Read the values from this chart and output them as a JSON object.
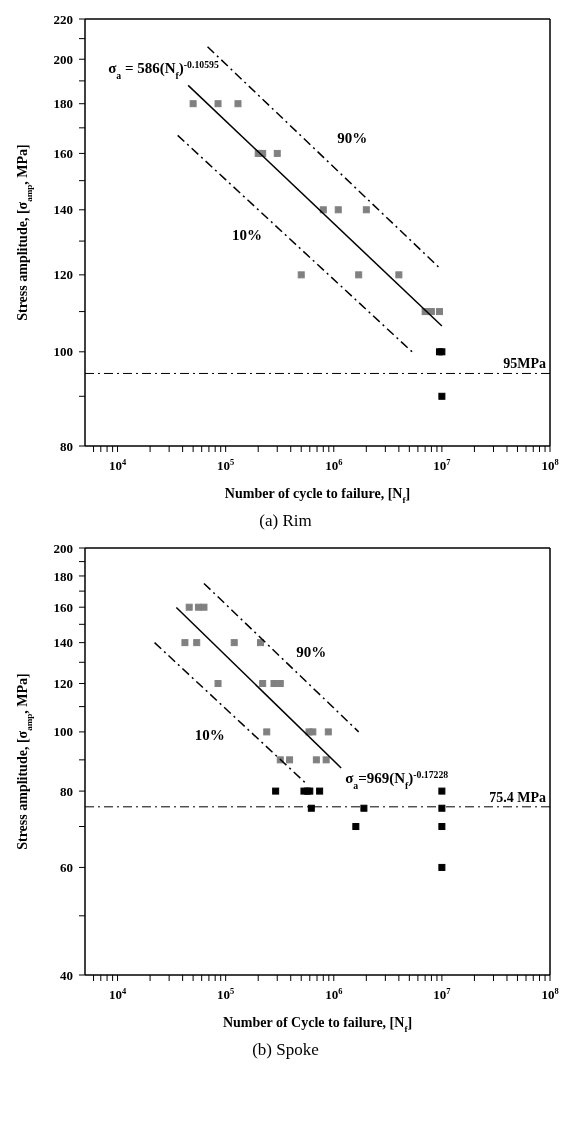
{
  "chart_data": [
    {
      "type": "scatter",
      "title": "(a) Rim",
      "xlabel": "Number of cycle to failure, [N$_{f}$]",
      "ylabel": "Stress amplitude, [σ$_{amp}$, MPa]",
      "log": "xy",
      "marker": "square",
      "xlim": [
        5000,
        100000000
      ],
      "xticks": [
        {
          "value": 10000,
          "label": "10$^{4}$"
        },
        {
          "value": 100000,
          "label": "10$^{5}$"
        },
        {
          "value": 1000000,
          "label": "10$^{6}$"
        },
        {
          "value": 10000000,
          "label": "10$^{7}$"
        },
        {
          "value": 100000000,
          "label": "10$^{8}$"
        },
        {
          "value": 6000,
          "label": null
        },
        {
          "value": 7000,
          "label": null
        },
        {
          "value": 8000,
          "label": null
        },
        {
          "value": 9000,
          "label": null
        },
        {
          "value": 20000,
          "label": null
        },
        {
          "value": 30000,
          "label": null
        },
        {
          "value": 40000,
          "label": null
        },
        {
          "value": 50000,
          "label": null
        },
        {
          "value": 60000,
          "label": null
        },
        {
          "value": 70000,
          "label": null
        },
        {
          "value": 80000,
          "label": null
        },
        {
          "value": 90000,
          "label": null
        },
        {
          "value": 200000,
          "label": null
        },
        {
          "value": 300000,
          "label": null
        },
        {
          "value": 400000,
          "label": null
        },
        {
          "value": 500000,
          "label": null
        },
        {
          "value": 600000,
          "label": null
        },
        {
          "value": 700000,
          "label": null
        },
        {
          "value": 800000,
          "label": null
        },
        {
          "value": 900000,
          "label": null
        },
        {
          "value": 2000000,
          "label": null
        },
        {
          "value": 3000000,
          "label": null
        },
        {
          "value": 4000000,
          "label": null
        },
        {
          "value": 5000000,
          "label": null
        },
        {
          "value": 6000000,
          "label": null
        },
        {
          "value": 7000000,
          "label": null
        },
        {
          "value": 8000000,
          "label": null
        },
        {
          "value": 9000000,
          "label": null
        },
        {
          "value": 20000000,
          "label": null
        },
        {
          "value": 30000000,
          "label": null
        },
        {
          "value": 40000000,
          "label": null
        },
        {
          "value": 50000000,
          "label": null
        },
        {
          "value": 60000000,
          "label": null
        },
        {
          "value": 70000000,
          "label": null
        },
        {
          "value": 80000000,
          "label": null
        },
        {
          "value": 90000000,
          "label": null
        }
      ],
      "ylim": [
        80,
        220
      ],
      "yticks": [
        80,
        100,
        120,
        140,
        160,
        180,
        200,
        220,
        {
          "value": 90,
          "label": null
        },
        {
          "value": 110,
          "label": null
        },
        {
          "value": 130,
          "label": null
        },
        {
          "value": 150,
          "label": null
        },
        {
          "value": 170,
          "label": null
        },
        {
          "value": 190,
          "label": null
        },
        {
          "value": 210,
          "label": null
        }
      ],
      "series": [
        {
          "color": "#808080",
          "x": [
            50000,
            85000,
            130000,
            200000,
            220000,
            300000,
            500000,
            800000,
            1100000,
            1700000,
            2000000,
            4000000,
            7000000,
            8000000,
            9500000
          ],
          "values": [
            180,
            180,
            180,
            160,
            160,
            160,
            120,
            140,
            140,
            120,
            140,
            120,
            110,
            110,
            110
          ]
        },
        {
          "color": "#000000",
          "x": [
            9500000,
            10000000,
            10000000
          ],
          "values": [
            100,
            100,
            90
          ]
        },
        {
          "type": "line",
          "name": "σ$_{a}$ = 586(N$_{f}$)$^{-0.10595}$",
          "color": "#000000",
          "line_style": "solid",
          "marker": "none",
          "x": [
            45000,
            10000000
          ],
          "values": [
            188,
            106.3
          ]
        },
        {
          "type": "line",
          "name": "90%",
          "color": "#000000",
          "line_style": "dashed",
          "marker": "none",
          "x": [
            68000,
            9500000
          ],
          "values": [
            206,
            122
          ]
        },
        {
          "type": "line",
          "name": "10%",
          "color": "#000000",
          "line_style": "dashed",
          "marker": "none",
          "x": [
            36000,
            5300000
          ],
          "values": [
            167,
            100
          ]
        }
      ],
      "ref_lines": [
        {
          "axis": "y",
          "value": 95,
          "label": "95MPa",
          "line_style": "dashed",
          "color": "#000000"
        }
      ]
    },
    {
      "type": "scatter",
      "title": "(b) Spoke",
      "xlabel": "Number of Cycle to failure, [N$_{f}$]",
      "ylabel": "Stress amplitude, [σ$_{amp}$, MPa]",
      "log": "xy",
      "marker": "square",
      "xlim": [
        5000,
        100000000
      ],
      "xticks": [
        {
          "value": 10000,
          "label": "10$^{4}$"
        },
        {
          "value": 100000,
          "label": "10$^{5}$"
        },
        {
          "value": 1000000,
          "label": "10$^{6}$"
        },
        {
          "value": 10000000,
          "label": "10$^{7}$"
        },
        {
          "value": 100000000,
          "label": "10$^{8}$"
        },
        {
          "value": 6000,
          "label": null
        },
        {
          "value": 7000,
          "label": null
        },
        {
          "value": 8000,
          "label": null
        },
        {
          "value": 9000,
          "label": null
        },
        {
          "value": 20000,
          "label": null
        },
        {
          "value": 30000,
          "label": null
        },
        {
          "value": 40000,
          "label": null
        },
        {
          "value": 50000,
          "label": null
        },
        {
          "value": 60000,
          "label": null
        },
        {
          "value": 70000,
          "label": null
        },
        {
          "value": 80000,
          "label": null
        },
        {
          "value": 90000,
          "label": null
        },
        {
          "value": 200000,
          "label": null
        },
        {
          "value": 300000,
          "label": null
        },
        {
          "value": 400000,
          "label": null
        },
        {
          "value": 500000,
          "label": null
        },
        {
          "value": 600000,
          "label": null
        },
        {
          "value": 700000,
          "label": null
        },
        {
          "value": 800000,
          "label": null
        },
        {
          "value": 900000,
          "label": null
        },
        {
          "value": 2000000,
          "label": null
        },
        {
          "value": 3000000,
          "label": null
        },
        {
          "value": 4000000,
          "label": null
        },
        {
          "value": 5000000,
          "label": null
        },
        {
          "value": 6000000,
          "label": null
        },
        {
          "value": 7000000,
          "label": null
        },
        {
          "value": 8000000,
          "label": null
        },
        {
          "value": 9000000,
          "label": null
        },
        {
          "value": 20000000,
          "label": null
        },
        {
          "value": 30000000,
          "label": null
        },
        {
          "value": 40000000,
          "label": null
        },
        {
          "value": 50000000,
          "label": null
        },
        {
          "value": 60000000,
          "label": null
        },
        {
          "value": 70000000,
          "label": null
        },
        {
          "value": 80000000,
          "label": null
        },
        {
          "value": 90000000,
          "label": null
        }
      ],
      "ylim": [
        40,
        200
      ],
      "yticks": [
        40,
        60,
        80,
        100,
        120,
        140,
        160,
        180,
        200,
        {
          "value": 50,
          "label": null
        },
        {
          "value": 70,
          "label": null
        },
        {
          "value": 90,
          "label": null
        },
        {
          "value": 110,
          "label": null
        },
        {
          "value": 130,
          "label": null
        },
        {
          "value": 150,
          "label": null
        },
        {
          "value": 170,
          "label": null
        },
        {
          "value": 190,
          "label": null
        }
      ],
      "series": [
        {
          "color": "#808080",
          "x": [
            46000,
            56000,
            63000,
            42000,
            54000,
            120000,
            210000,
            85000,
            220000,
            280000,
            320000,
            240000,
            590000,
            640000,
            890000,
            320000,
            390000,
            690000,
            850000
          ],
          "values": [
            160,
            160,
            160,
            140,
            140,
            140,
            140,
            120,
            120,
            120,
            120,
            100,
            100,
            100,
            100,
            90,
            90,
            90,
            90
          ]
        },
        {
          "color": "#000000",
          "x": [
            290000,
            530000,
            570000,
            600000,
            740000,
            10000000,
            620000,
            1900000,
            10000000,
            1600000,
            10000000,
            10000000
          ],
          "values": [
            80,
            80,
            80,
            80,
            80,
            80,
            75,
            75,
            75,
            70,
            70,
            60
          ]
        },
        {
          "type": "line",
          "name": "σ$_{a}$=969(N$_{f}$)$^{-0.17228}$",
          "color": "#000000",
          "line_style": "solid",
          "marker": "none",
          "x": [
            35000,
            1170000
          ],
          "values": [
            159.8,
            87.3
          ]
        },
        {
          "type": "line",
          "name": "90%",
          "color": "#000000",
          "line_style": "dashed",
          "marker": "none",
          "x": [
            63000,
            1700000
          ],
          "values": [
            175,
            100
          ]
        },
        {
          "type": "line",
          "name": "10%",
          "color": "#000000",
          "line_style": "dashed",
          "marker": "none",
          "x": [
            22000,
            540000
          ],
          "values": [
            140,
            82.7
          ]
        }
      ],
      "ref_lines": [
        {
          "axis": "y",
          "value": 75.4,
          "label": "75.4 MPa",
          "line_style": "dashed",
          "color": "#000000"
        }
      ]
    }
  ]
}
